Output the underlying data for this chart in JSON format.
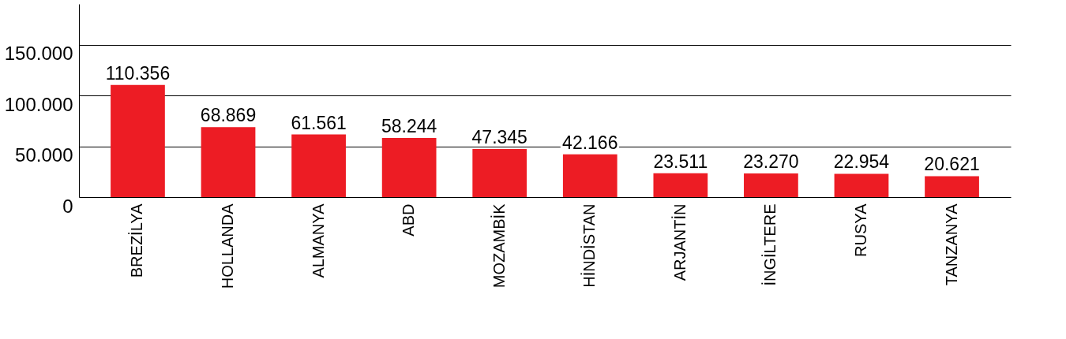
{
  "chart_data": {
    "type": "bar",
    "categories": [
      "BREZİLYA",
      "HOLLANDA",
      "ALMANYA",
      "ABD",
      "MOZAMBİK",
      "HİNDİSTAN",
      "ARJANTİN",
      "İNGİLTERE",
      "RUSYA",
      "TANZANYA"
    ],
    "values": [
      110356,
      68869,
      61561,
      58244,
      47345,
      42166,
      23511,
      23270,
      22954,
      20621
    ],
    "value_labels": [
      "110.356",
      "68.869",
      "61.561",
      "58.244",
      "47.345",
      "42.166",
      "23.511",
      "23.270",
      "22.954",
      "20.621"
    ],
    "color": "#ed1c24",
    "ylim": [
      0,
      190000
    ],
    "yticks": [
      {
        "value": 0,
        "label": "0"
      },
      {
        "value": 50000,
        "label": "50.000"
      },
      {
        "value": 100000,
        "label": "100.000"
      },
      {
        "value": 150000,
        "label": "150.000"
      }
    ],
    "grid": "y"
  }
}
